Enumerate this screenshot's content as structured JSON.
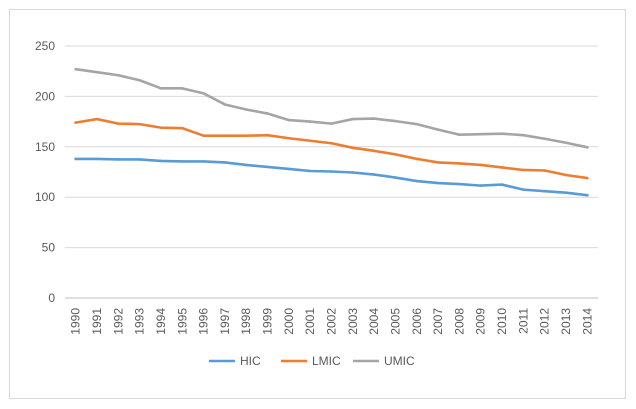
{
  "chart_data": {
    "type": "line",
    "title": "",
    "xlabel": "",
    "ylabel": "",
    "ylim": [
      0,
      250
    ],
    "yticks": [
      0,
      50,
      100,
      150,
      200,
      250
    ],
    "grid": "horizontal",
    "legend_position": "bottom",
    "categories": [
      "1990",
      "1991",
      "1992",
      "1993",
      "1994",
      "1995",
      "1996",
      "1997",
      "1998",
      "1999",
      "2000",
      "2001",
      "2002",
      "2003",
      "2004",
      "2005",
      "2006",
      "2007",
      "2008",
      "2009",
      "2010",
      "2011",
      "2012",
      "2013",
      "2014"
    ],
    "series": [
      {
        "name": "HIC",
        "color": "#5b9bd5",
        "values": [
          138,
          138,
          137.5,
          137.5,
          136,
          135.5,
          135.5,
          134.5,
          132,
          130,
          128,
          126,
          125.5,
          124.5,
          122.5,
          119.5,
          116,
          114,
          113,
          111.5,
          112.5,
          107.5,
          106,
          104.5,
          102
        ]
      },
      {
        "name": "LMIC",
        "color": "#ed7d31",
        "values": [
          174,
          177.5,
          173,
          172.5,
          169,
          168.5,
          161,
          161,
          161,
          161.5,
          158.5,
          156,
          153.5,
          149,
          146,
          142.5,
          138,
          134.5,
          133.5,
          132,
          129.5,
          127,
          126.5,
          122,
          119
        ]
      },
      {
        "name": "UMIC",
        "color": "#a5a5a5",
        "values": [
          227,
          224,
          221,
          216,
          208,
          208,
          203,
          192,
          187,
          183,
          176.5,
          175,
          173,
          177.5,
          178,
          175.5,
          172.5,
          167,
          162,
          162.5,
          163,
          161.5,
          158,
          154,
          149.5
        ]
      }
    ]
  }
}
